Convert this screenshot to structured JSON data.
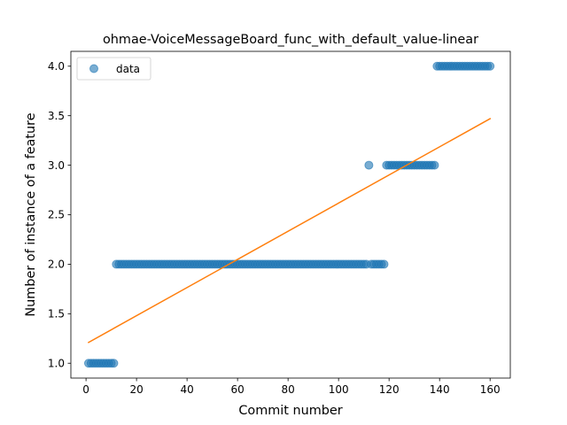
{
  "chart_data": {
    "type": "scatter",
    "title": "ohmae-VoiceMessageBoard_func_with_default_value-linear",
    "xlabel": "Commit number",
    "ylabel": "Number of instance of a feature",
    "xlim": [
      -6,
      168
    ],
    "ylim": [
      0.85,
      4.15
    ],
    "xticks": [
      0,
      20,
      40,
      60,
      80,
      100,
      120,
      140,
      160
    ],
    "yticks": [
      1.0,
      1.5,
      2.0,
      2.5,
      3.0,
      3.5,
      4.0
    ],
    "xtick_labels": [
      "0",
      "20",
      "40",
      "60",
      "80",
      "100",
      "120",
      "140",
      "160"
    ],
    "ytick_labels": [
      "1.0",
      "1.5",
      "2.0",
      "2.5",
      "3.0",
      "3.5",
      "4.0"
    ],
    "grid": false,
    "legend": {
      "position": "top-left",
      "entries": [
        "data"
      ]
    },
    "colors": {
      "data": "#1f77b4",
      "fit": "#ff7f0e"
    },
    "series": [
      {
        "name": "data",
        "kind": "scatter",
        "segments": [
          {
            "x_from": 1,
            "x_to": 11,
            "y": 1.0
          },
          {
            "x_from": 12,
            "x_to": 111,
            "y": 2.0
          },
          {
            "x_from": 112,
            "x_to": 112,
            "y": 3.0
          },
          {
            "x_from": 113,
            "x_to": 118,
            "y": 2.0
          },
          {
            "x_from": 119,
            "x_to": 138,
            "y": 3.0
          },
          {
            "x_from": 139,
            "x_to": 160,
            "y": 4.0
          }
        ]
      },
      {
        "kind": "line",
        "points": [
          [
            1,
            1.21
          ],
          [
            160,
            3.47
          ]
        ]
      }
    ]
  }
}
